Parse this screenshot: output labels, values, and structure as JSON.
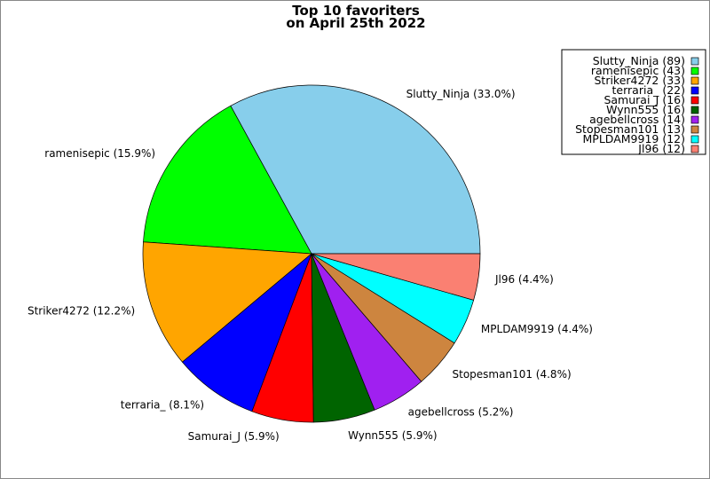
{
  "chart_data": {
    "type": "pie",
    "title_lines": [
      "Top 10 favoriters",
      "on April 25th 2022"
    ],
    "legend_position": "top-right",
    "start_angle_deg": 0,
    "direction": "counterclockwise",
    "slices": [
      {
        "label": "Slutty_Ninja",
        "value": 89,
        "percent_label": "Slutty_Ninja (33.0%)",
        "legend_label": "Slutty_Ninja (89)",
        "color": "#87ceeb"
      },
      {
        "label": "ramenisepic",
        "value": 43,
        "percent_label": "ramenisepic (15.9%)",
        "legend_label": "ramenisepic (43)",
        "color": "#00ff00"
      },
      {
        "label": "Striker4272",
        "value": 33,
        "percent_label": "Striker4272 (12.2%)",
        "legend_label": "Striker4272 (33)",
        "color": "#ffa500"
      },
      {
        "label": "terraria_",
        "value": 22,
        "percent_label": "terraria_ (8.1%)",
        "legend_label": "terraria_ (22)",
        "color": "#0000ff"
      },
      {
        "label": "Samurai_J",
        "value": 16,
        "percent_label": "Samurai_J (5.9%)",
        "legend_label": "Samurai_J (16)",
        "color": "#ff0000"
      },
      {
        "label": "Wynn555",
        "value": 16,
        "percent_label": "Wynn555 (5.9%)",
        "legend_label": "Wynn555 (16)",
        "color": "#006400"
      },
      {
        "label": "agebellcross",
        "value": 14,
        "percent_label": "agebellcross (5.2%)",
        "legend_label": "agebellcross (14)",
        "color": "#a020f0"
      },
      {
        "label": "Stopesman101",
        "value": 13,
        "percent_label": "Stopesman101 (4.8%)",
        "legend_label": "Stopesman101 (13)",
        "color": "#cd853f"
      },
      {
        "label": "MPLDAM9919",
        "value": 12,
        "percent_label": "MPLDAM9919 (4.4%)",
        "legend_label": "MPLDAM9919 (12)",
        "color": "#00ffff"
      },
      {
        "label": "Jl96",
        "value": 12,
        "percent_label": "Jl96 (4.4%)",
        "legend_label": "Jl96 (12)",
        "color": "#fa8072"
      }
    ]
  }
}
